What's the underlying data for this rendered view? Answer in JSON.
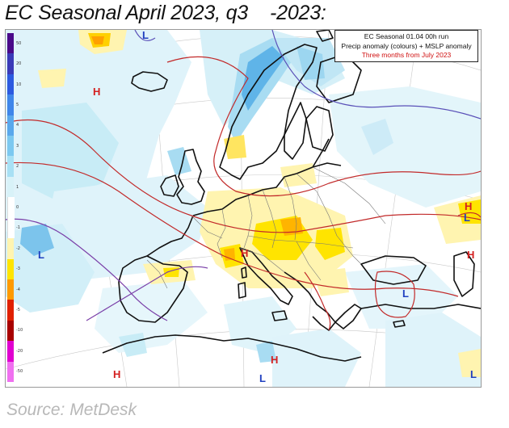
{
  "title": "EC Seasonal April 2023, q3    -2023:",
  "infobox": {
    "line1": "EC Seasonal 01.04 00h run",
    "line2": "Precip anomaly (colours) + MSLP anomaly",
    "line3": "Three months from July 2023"
  },
  "colorbar": {
    "labels": [
      "50",
      "20",
      "10",
      "5",
      "4",
      "3",
      "2",
      "1",
      "0",
      "-1",
      "-2",
      "-3",
      "-4",
      "-5",
      "-10",
      "-20",
      "-50"
    ],
    "colors": [
      "#4a0a8a",
      "#3a3ab8",
      "#2c5ae0",
      "#3f86ea",
      "#5aa8ec",
      "#7cc8f0",
      "#a8e0f4",
      "#d8f2f8",
      "#ffffff",
      "#ffffff",
      "#fff4b0",
      "#ffe400",
      "#ff9a00",
      "#e02000",
      "#a80000",
      "#e000d0",
      "#f070f0"
    ]
  },
  "pressure_labels": [
    {
      "text": "H",
      "kind": "H"
    },
    {
      "text": "L",
      "kind": "L"
    },
    {
      "text": "H",
      "kind": "H"
    },
    {
      "text": "L",
      "kind": "L"
    },
    {
      "text": "L",
      "kind": "L"
    },
    {
      "text": "H",
      "kind": "H"
    },
    {
      "text": "H",
      "kind": "H"
    },
    {
      "text": "L",
      "kind": "L"
    },
    {
      "text": "H",
      "kind": "H"
    },
    {
      "text": "L",
      "kind": "L"
    },
    {
      "text": "H",
      "kind": "H"
    },
    {
      "text": "L",
      "kind": "L"
    }
  ],
  "source": "Source:  MetDesk"
}
